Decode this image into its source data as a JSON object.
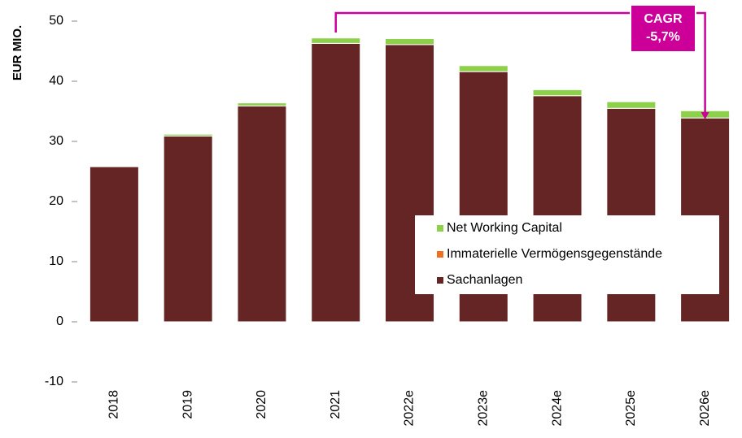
{
  "chart_data": {
    "type": "bar",
    "stacked": true,
    "y_label": "EUR MIO.",
    "categories": [
      "2018",
      "2019",
      "2020",
      "2021",
      "2022e",
      "2023e",
      "2024e",
      "2025e",
      "2026e"
    ],
    "series": [
      {
        "name": "Sachanlagen",
        "color": "#652525",
        "values": [
          25.8,
          30.9,
          35.9,
          46.3,
          46.1,
          41.6,
          37.6,
          35.5,
          33.9
        ]
      },
      {
        "name": "Immaterielle Vermögensgegenstände",
        "color": "#f07020",
        "values": [
          0,
          0,
          0,
          0,
          0,
          0,
          0,
          0,
          0
        ]
      },
      {
        "name": "Net Working Capital",
        "color": "#8dd04a",
        "values": [
          0.1,
          0.3,
          0.5,
          0.9,
          1.0,
          1.0,
          1.0,
          1.1,
          1.2
        ]
      }
    ],
    "ylim": [
      -10,
      50
    ],
    "yticks": [
      -10,
      0,
      10,
      20,
      30,
      40,
      50
    ],
    "annotation": {
      "lines": [
        "CAGR",
        "-5,7%"
      ],
      "color": "#cc0099"
    }
  }
}
